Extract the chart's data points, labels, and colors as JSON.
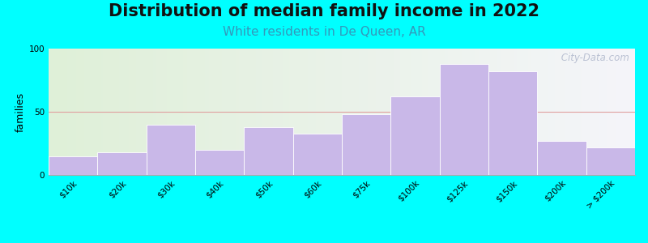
{
  "title": "Distribution of median family income in 2022",
  "subtitle": "White residents in De Queen, AR",
  "ylabel": "families",
  "bar_color": "#c9b8e8",
  "bar_edge_color": "#ffffff",
  "background_color": "#00ffff",
  "categories": [
    "$10k",
    "$20k",
    "$30k",
    "$40k",
    "$50k",
    "$60k",
    "$75k",
    "$100k",
    "$125k",
    "$150k",
    "$200k",
    "> $200k"
  ],
  "values": [
    15,
    18,
    40,
    20,
    38,
    33,
    48,
    62,
    88,
    82,
    27,
    22
  ],
  "ylim": [
    0,
    100
  ],
  "yticks": [
    0,
    50,
    100
  ],
  "grid_color": "#e0a0a0",
  "title_fontsize": 15,
  "subtitle_fontsize": 11,
  "subtitle_color": "#3399bb",
  "ylabel_fontsize": 9,
  "tick_fontsize": 7.5,
  "watermark_text": " City-Data.com",
  "watermark_color": "#b0b8cc"
}
